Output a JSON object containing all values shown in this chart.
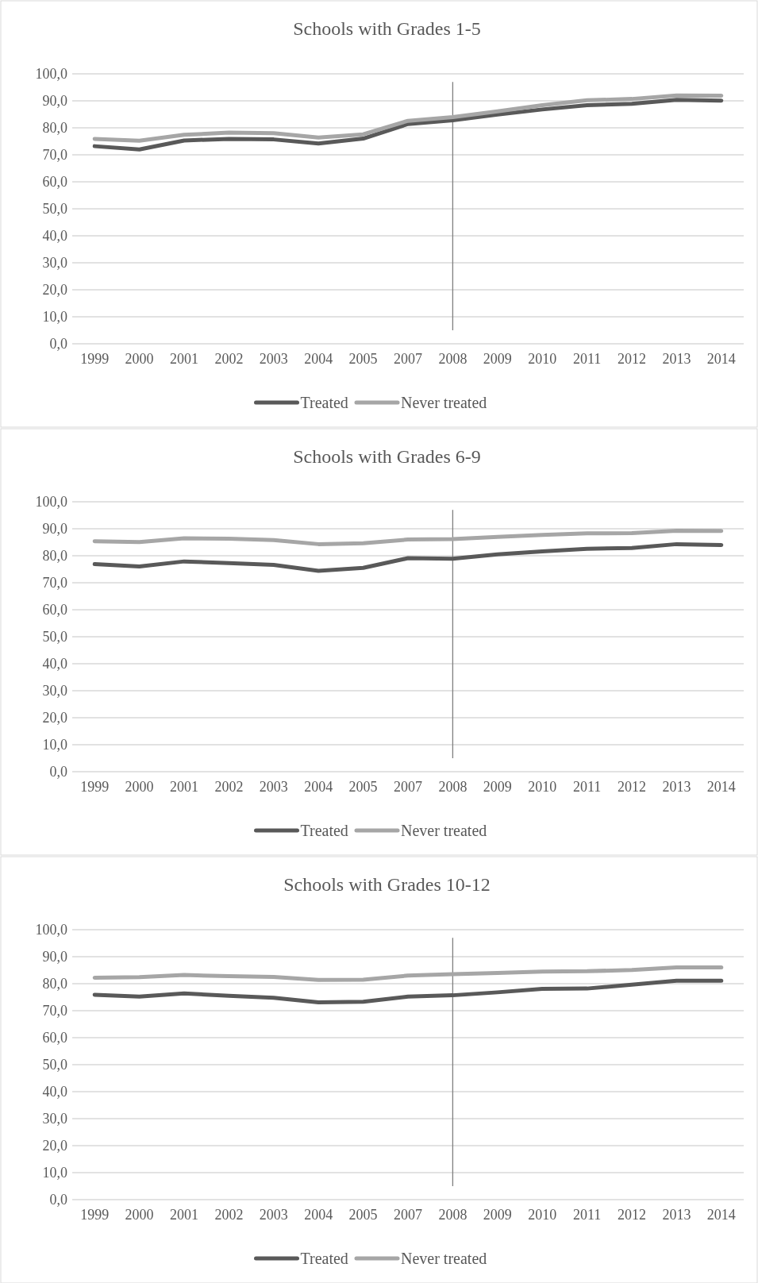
{
  "chart_data": [
    {
      "type": "line",
      "title": "Schools with Grades 1-5",
      "categories": [
        "1999",
        "2000",
        "2001",
        "2002",
        "2003",
        "2004",
        "2005",
        "2007",
        "2008",
        "2009",
        "2010",
        "2011",
        "2012",
        "2013",
        "2014"
      ],
      "series": [
        {
          "name": "Treated",
          "color": "#595959",
          "values": [
            73.2,
            72.0,
            75.3,
            75.9,
            75.7,
            74.2,
            76.0,
            81.4,
            82.8,
            84.9,
            86.8,
            88.4,
            88.9,
            90.4,
            90.1
          ]
        },
        {
          "name": "Never treated",
          "color": "#a6a6a6",
          "values": [
            75.9,
            75.2,
            77.4,
            78.2,
            78.0,
            76.4,
            77.6,
            82.6,
            84.0,
            86.1,
            88.4,
            90.2,
            90.7,
            92.0,
            91.9
          ]
        }
      ],
      "ylim": [
        0,
        100
      ],
      "yticks": [
        {
          "value": 0,
          "label": "0,0"
        },
        {
          "value": 10,
          "label": "10,0"
        },
        {
          "value": 20,
          "label": "20,0"
        },
        {
          "value": 30,
          "label": "30,0"
        },
        {
          "value": 40,
          "label": "40,0"
        },
        {
          "value": 50,
          "label": "50,0"
        },
        {
          "value": 60,
          "label": "60,0"
        },
        {
          "value": 70,
          "label": "70,0"
        },
        {
          "value": 80,
          "label": "80,0"
        },
        {
          "value": 90,
          "label": "90,0"
        },
        {
          "value": 100,
          "label": "100,0"
        }
      ],
      "ref_lines": [
        {
          "axis": "x",
          "value": "2008",
          "color": "#7f7f7f"
        }
      ],
      "grid": "y",
      "legend": "bottom",
      "marker": "none"
    },
    {
      "type": "line",
      "title": "Schools with Grades 6-9",
      "categories": [
        "1999",
        "2000",
        "2001",
        "2002",
        "2003",
        "2004",
        "2005",
        "2007",
        "2008",
        "2009",
        "2010",
        "2011",
        "2012",
        "2013",
        "2014"
      ],
      "series": [
        {
          "name": "Treated",
          "color": "#595959",
          "values": [
            76.9,
            76.0,
            77.9,
            77.3,
            76.6,
            74.4,
            75.5,
            79.1,
            78.9,
            80.5,
            81.6,
            82.6,
            82.9,
            84.3,
            84.0
          ]
        },
        {
          "name": "Never treated",
          "color": "#a6a6a6",
          "values": [
            85.4,
            85.1,
            86.5,
            86.3,
            85.8,
            84.3,
            84.6,
            86.0,
            86.2,
            87.0,
            87.7,
            88.3,
            88.4,
            89.3,
            89.2
          ]
        }
      ],
      "ylim": [
        0,
        100
      ],
      "yticks": [
        {
          "value": 0,
          "label": "0,0"
        },
        {
          "value": 10,
          "label": "10,0"
        },
        {
          "value": 20,
          "label": "20,0"
        },
        {
          "value": 30,
          "label": "30,0"
        },
        {
          "value": 40,
          "label": "40,0"
        },
        {
          "value": 50,
          "label": "50,0"
        },
        {
          "value": 60,
          "label": "60,0"
        },
        {
          "value": 70,
          "label": "70,0"
        },
        {
          "value": 80,
          "label": "80,0"
        },
        {
          "value": 90,
          "label": "90,0"
        },
        {
          "value": 100,
          "label": "100,0"
        }
      ],
      "ref_lines": [
        {
          "axis": "x",
          "value": "2008",
          "color": "#7f7f7f"
        }
      ],
      "grid": "y",
      "legend": "bottom",
      "marker": "none"
    },
    {
      "type": "line",
      "title": "Schools with Grades 10-12",
      "categories": [
        "1999",
        "2000",
        "2001",
        "2002",
        "2003",
        "2004",
        "2005",
        "2007",
        "2008",
        "2009",
        "2010",
        "2011",
        "2012",
        "2013",
        "2014"
      ],
      "series": [
        {
          "name": "Treated",
          "color": "#595959",
          "values": [
            75.9,
            75.2,
            76.4,
            75.5,
            74.8,
            73.1,
            73.3,
            75.2,
            75.7,
            76.8,
            78.1,
            78.2,
            79.6,
            81.1,
            81.1
          ]
        },
        {
          "name": "Never treated",
          "color": "#a6a6a6",
          "values": [
            82.2,
            82.4,
            83.2,
            82.8,
            82.5,
            81.4,
            81.5,
            83.0,
            83.5,
            84.0,
            84.5,
            84.6,
            85.1,
            86.0,
            86.0
          ]
        }
      ],
      "ylim": [
        0,
        100
      ],
      "yticks": [
        {
          "value": 0,
          "label": "0,0"
        },
        {
          "value": 10,
          "label": "10,0"
        },
        {
          "value": 20,
          "label": "20,0"
        },
        {
          "value": 30,
          "label": "30,0"
        },
        {
          "value": 40,
          "label": "40,0"
        },
        {
          "value": 50,
          "label": "50,0"
        },
        {
          "value": 60,
          "label": "60,0"
        },
        {
          "value": 70,
          "label": "70,0"
        },
        {
          "value": 80,
          "label": "80,0"
        },
        {
          "value": 90,
          "label": "90,0"
        },
        {
          "value": 100,
          "label": "100,0"
        }
      ],
      "ref_lines": [
        {
          "axis": "x",
          "value": "2008",
          "color": "#7f7f7f"
        }
      ],
      "grid": "y",
      "legend": "bottom",
      "marker": "none"
    }
  ]
}
